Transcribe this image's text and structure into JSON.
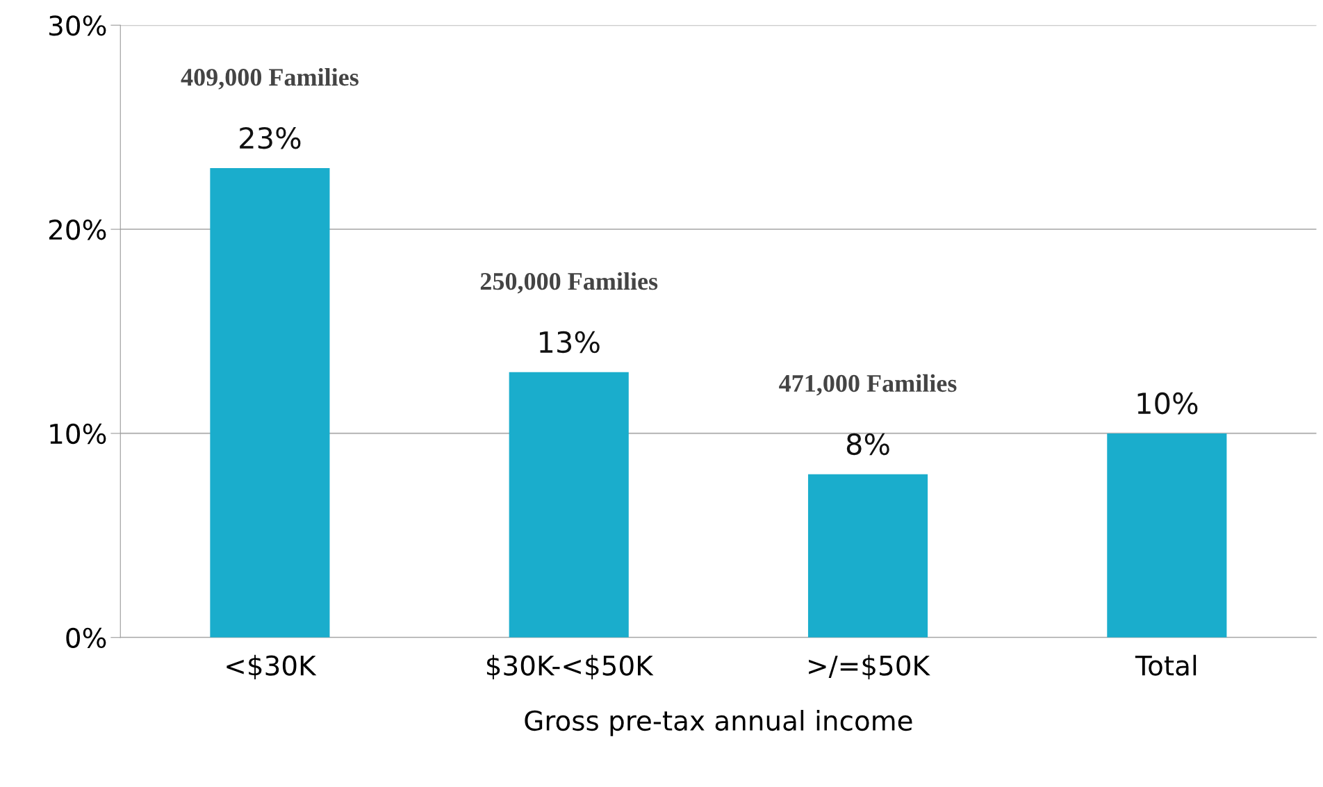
{
  "chart_data": {
    "type": "bar",
    "categories": [
      "<$30K",
      "$30K-<$50K",
      ">/=$50K",
      "Total"
    ],
    "values": [
      23,
      13,
      8,
      10
    ],
    "value_labels": [
      "23%",
      "13%",
      "8%",
      "10%"
    ],
    "color": "#1aadcc",
    "xlabel": "Gross pre-tax annual income",
    "ylim": [
      0,
      30
    ],
    "yticks": [
      {
        "value": 0,
        "label": "0%"
      },
      {
        "value": 10,
        "label": "10%"
      },
      {
        "value": 20,
        "label": "20%"
      },
      {
        "value": 30,
        "label": "30%"
      }
    ],
    "grid": "y",
    "annotations": [
      "409,000 Families",
      "250,000 Families",
      "471,000 Families"
    ]
  }
}
